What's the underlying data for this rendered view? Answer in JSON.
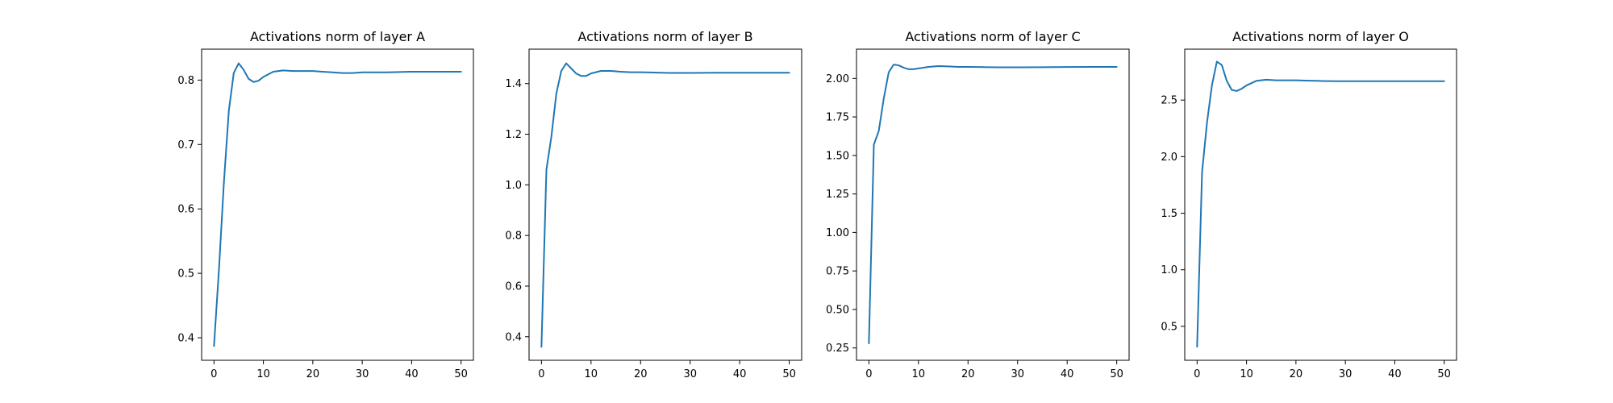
{
  "figure": {
    "background": "#ffffff"
  },
  "chart_data": [
    {
      "type": "line",
      "title": "Activations norm of layer A",
      "xlabel": "",
      "ylabel": "",
      "xlim": [
        -2.5,
        52.5
      ],
      "ylim": [
        0.365,
        0.848
      ],
      "xticks": [
        0,
        10,
        20,
        30,
        40,
        50
      ],
      "yticks": [
        0.4,
        0.5,
        0.6,
        0.7,
        0.8
      ],
      "ytick_labels": [
        "0.4",
        "0.5",
        "0.6",
        "0.7",
        "0.8"
      ],
      "grid": false,
      "color": "#1f77b4",
      "series": [
        {
          "x": [
            0,
            1,
            2,
            3,
            4,
            5,
            6,
            7,
            8,
            9,
            10,
            12,
            14,
            16,
            18,
            20,
            22,
            24,
            26,
            28,
            30,
            35,
            40,
            45,
            50
          ],
          "values": [
            0.387,
            0.505,
            0.64,
            0.752,
            0.811,
            0.826,
            0.816,
            0.802,
            0.797,
            0.799,
            0.805,
            0.813,
            0.815,
            0.814,
            0.814,
            0.814,
            0.813,
            0.812,
            0.811,
            0.811,
            0.812,
            0.812,
            0.813,
            0.813,
            0.813
          ]
        }
      ]
    },
    {
      "type": "line",
      "title": "Activations norm of layer B",
      "xlabel": "",
      "ylabel": "",
      "xlim": [
        -2.5,
        52.5
      ],
      "ylim": [
        0.307,
        1.536
      ],
      "xticks": [
        0,
        10,
        20,
        30,
        40,
        50
      ],
      "yticks": [
        0.4,
        0.6,
        0.8,
        1.0,
        1.2,
        1.4
      ],
      "ytick_labels": [
        "0.4",
        "0.6",
        "0.8",
        "1.0",
        "1.2",
        "1.4"
      ],
      "grid": false,
      "color": "#1f77b4",
      "series": [
        {
          "x": [
            0,
            1,
            2,
            3,
            4,
            5,
            6,
            7,
            8,
            9,
            10,
            12,
            14,
            16,
            18,
            20,
            22,
            24,
            26,
            28,
            30,
            35,
            40,
            45,
            50
          ],
          "values": [
            0.36,
            1.06,
            1.19,
            1.36,
            1.45,
            1.48,
            1.46,
            1.44,
            1.43,
            1.43,
            1.44,
            1.45,
            1.45,
            1.447,
            1.445,
            1.445,
            1.444,
            1.443,
            1.442,
            1.442,
            1.442,
            1.443,
            1.443,
            1.443,
            1.443
          ]
        }
      ]
    },
    {
      "type": "line",
      "title": "Activations norm of layer C",
      "xlabel": "",
      "ylabel": "",
      "xlim": [
        -2.5,
        52.5
      ],
      "ylim": [
        0.17,
        2.19
      ],
      "xticks": [
        0,
        10,
        20,
        30,
        40,
        50
      ],
      "yticks": [
        0.25,
        0.5,
        0.75,
        1.0,
        1.25,
        1.5,
        1.75,
        2.0
      ],
      "ytick_labels": [
        "0.25",
        "0.50",
        "0.75",
        "1.00",
        "1.25",
        "1.50",
        "1.75",
        "2.00"
      ],
      "grid": false,
      "color": "#1f77b4",
      "series": [
        {
          "x": [
            0,
            1,
            2,
            3,
            4,
            5,
            6,
            7,
            8,
            9,
            10,
            12,
            14,
            16,
            18,
            20,
            22,
            24,
            26,
            28,
            30,
            35,
            40,
            45,
            50
          ],
          "values": [
            0.28,
            1.57,
            1.66,
            1.87,
            2.04,
            2.09,
            2.085,
            2.07,
            2.06,
            2.06,
            2.065,
            2.075,
            2.08,
            2.078,
            2.075,
            2.075,
            2.074,
            2.073,
            2.072,
            2.072,
            2.072,
            2.073,
            2.074,
            2.075,
            2.075
          ]
        }
      ]
    },
    {
      "type": "line",
      "title": "Activations norm of layer O",
      "xlabel": "",
      "ylabel": "",
      "xlim": [
        -2.5,
        52.5
      ],
      "ylim": [
        0.2,
        2.95
      ],
      "xticks": [
        0,
        10,
        20,
        30,
        40,
        50
      ],
      "yticks": [
        0.5,
        1.0,
        1.5,
        2.0,
        2.5
      ],
      "ytick_labels": [
        "0.5",
        "1.0",
        "1.5",
        "2.0",
        "2.5"
      ],
      "grid": false,
      "color": "#1f77b4",
      "series": [
        {
          "x": [
            0,
            1,
            2,
            3,
            4,
            5,
            6,
            7,
            8,
            9,
            10,
            12,
            14,
            16,
            18,
            20,
            22,
            24,
            26,
            28,
            30,
            35,
            40,
            45,
            50
          ],
          "values": [
            0.32,
            1.86,
            2.3,
            2.63,
            2.84,
            2.81,
            2.67,
            2.59,
            2.58,
            2.6,
            2.63,
            2.67,
            2.68,
            2.675,
            2.675,
            2.675,
            2.672,
            2.67,
            2.668,
            2.667,
            2.667,
            2.667,
            2.667,
            2.667,
            2.667
          ]
        }
      ]
    }
  ]
}
